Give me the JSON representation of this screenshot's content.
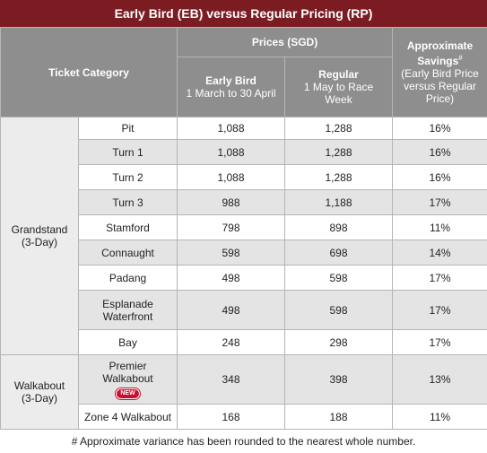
{
  "title": "Early Bird (EB) versus Regular Pricing (RP)",
  "header": {
    "ticket_category": "Ticket Category",
    "prices": "Prices (SGD)",
    "early_bird": "Early Bird",
    "early_bird_dates": "1 March to 30 April",
    "regular": "Regular",
    "regular_dates": "1 May to Race Week",
    "savings": "Approximate Savings",
    "savings_mark": "#",
    "savings_note": "(Early Bird Price versus Regular Price)"
  },
  "groups": [
    {
      "label": "Grandstand (3-Day)",
      "rows": [
        {
          "ticket": "Pit",
          "early_bird": "1,088",
          "regular": "1,288",
          "savings": "16%"
        },
        {
          "ticket": "Turn 1",
          "early_bird": "1,088",
          "regular": "1,288",
          "savings": "16%"
        },
        {
          "ticket": "Turn 2",
          "early_bird": "1,088",
          "regular": "1,288",
          "savings": "16%"
        },
        {
          "ticket": "Turn 3",
          "early_bird": "988",
          "regular": "1,188",
          "savings": "17%"
        },
        {
          "ticket": "Stamford",
          "early_bird": "798",
          "regular": "898",
          "savings": "11%"
        },
        {
          "ticket": "Connaught",
          "early_bird": "598",
          "regular": "698",
          "savings": "14%"
        },
        {
          "ticket": "Padang",
          "early_bird": "498",
          "regular": "598",
          "savings": "17%"
        },
        {
          "ticket": "Esplanade Waterfront",
          "early_bird": "498",
          "regular": "598",
          "savings": "17%"
        },
        {
          "ticket": "Bay",
          "early_bird": "248",
          "regular": "298",
          "savings": "17%"
        }
      ]
    },
    {
      "label": "Walkabout (3-Day)",
      "rows": [
        {
          "ticket": "Premier Walkabout",
          "badge": "NEW",
          "early_bird": "348",
          "regular": "398",
          "savings": "13%"
        },
        {
          "ticket": "Zone 4 Walkabout",
          "early_bird": "168",
          "regular": "188",
          "savings": "11%"
        }
      ]
    }
  ],
  "footnote": "# Approximate variance has been rounded to the nearest whole number."
}
